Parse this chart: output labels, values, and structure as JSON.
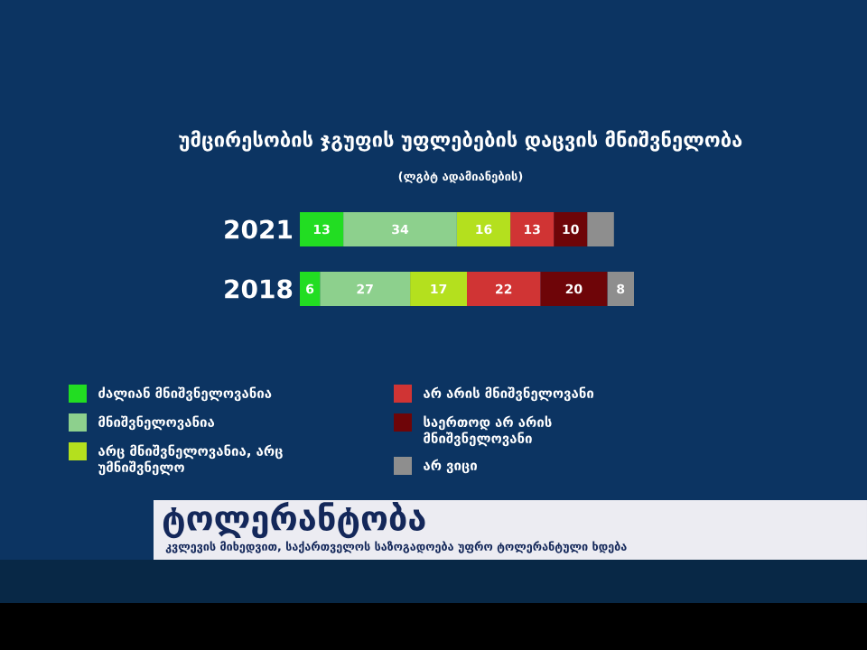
{
  "chart_data": {
    "type": "bar",
    "orientation": "horizontal",
    "stacked": true,
    "title": "უმცირესობის ჯგუფის უფლებების დაცვის მნიშვნელობა",
    "subtitle": "(ლგბტ ადამიანების)",
    "categories": [
      "2021",
      "2018"
    ],
    "series": [
      {
        "name": "ძალიან მნიშვნელოვანია",
        "color": "#22dd22",
        "values": [
          13,
          6
        ],
        "value_labels": [
          "13",
          "6"
        ]
      },
      {
        "name": "მნიშვნელოვანია",
        "color": "#8dd08d",
        "values": [
          34,
          27
        ],
        "value_labels": [
          "34",
          "27"
        ]
      },
      {
        "name": "არც მნიშვნელოვანია, არც უმნიშვნელო",
        "color": "#b4e01e",
        "values": [
          16,
          17
        ],
        "value_labels": [
          "16",
          "17"
        ]
      },
      {
        "name": "არ არის მნიშვნელოვანი",
        "color": "#d03434",
        "values": [
          13,
          22
        ],
        "value_labels": [
          "13",
          "22"
        ]
      },
      {
        "name": "საერთოდ არ არის მნიშვნელოვანი",
        "color": "#6e0508",
        "values": [
          10,
          20
        ],
        "value_labels": [
          "10",
          "20"
        ]
      },
      {
        "name": "არ ვიცი",
        "color": "#8e8e8e",
        "values": [
          8,
          8
        ],
        "value_labels": [
          null,
          "8"
        ]
      }
    ],
    "legend": "bottom",
    "annotations": [
      "ტოლერანტობა",
      "კვლევის მიხედვით, საქართველოს საზოგადოება უფრო ტოლერანტული ხდება"
    ]
  }
}
